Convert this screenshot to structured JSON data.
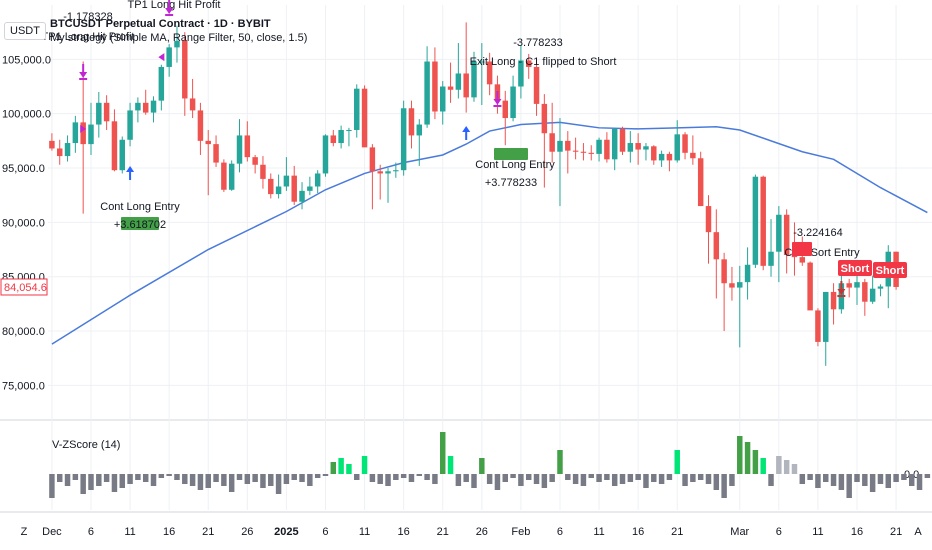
{
  "header": {
    "currency": "USDT",
    "symbol_line": "BTCUSDT Perpetual Contract · 1D · BYBIT",
    "strategy_line": "My strategy (Simple MA, Range Filter, 50, close, 1.5)",
    "last_price": "84,054.6"
  },
  "chart_data": [
    {
      "type": "candlestick",
      "title": "BTCUSDT Perpetual Contract · 1D · BYBIT",
      "ylim": [
        72000,
        110000
      ],
      "y_ticks": [
        "75,000.0",
        "80,000.0",
        "85,000.0",
        "90,000.0",
        "95,000.0",
        "100,000.0",
        "105,000.0"
      ],
      "x_ticks": [
        "Dec",
        "6",
        "11",
        "16",
        "21",
        "26",
        "2025",
        "6",
        "11",
        "16",
        "21",
        "26",
        "Feb",
        "6",
        "11",
        "16",
        "21",
        "Mar",
        "6",
        "11",
        "16",
        "21"
      ],
      "ohlc": [
        [
          97500,
          98200,
          96600,
          96800
        ],
        [
          96800,
          97600,
          95300,
          96100
        ],
        [
          96100,
          98000,
          95600,
          97300
        ],
        [
          97300,
          99800,
          96400,
          99200
        ],
        [
          99200,
          104800,
          90800,
          97200
        ],
        [
          97200,
          101000,
          96200,
          99000
        ],
        [
          99000,
          102000,
          97800,
          101000
        ],
        [
          101000,
          101700,
          98500,
          99300
        ],
        [
          99300,
          100400,
          94700,
          94800
        ],
        [
          94800,
          97900,
          94500,
          97600
        ],
        [
          97600,
          101000,
          97000,
          100300
        ],
        [
          100300,
          101500,
          99200,
          101000
        ],
        [
          101000,
          102200,
          99900,
          100100
        ],
        [
          100100,
          101600,
          99200,
          101200
        ],
        [
          101200,
          104500,
          100300,
          104300
        ],
        [
          104300,
          106400,
          103400,
          106100
        ],
        [
          106100,
          108100,
          104700,
          106700
        ],
        [
          106700,
          107500,
          99800,
          101400
        ],
        [
          101400,
          103200,
          99600,
          100300
        ],
        [
          100300,
          101000,
          96200,
          97500
        ],
        [
          97500,
          98500,
          92500,
          97200
        ],
        [
          97200,
          98000,
          95100,
          95500
        ],
        [
          95500,
          95800,
          92800,
          93000
        ],
        [
          93000,
          95700,
          92900,
          95400
        ],
        [
          95400,
          99500,
          94600,
          98000
        ],
        [
          98000,
          99300,
          95600,
          96000
        ],
        [
          96000,
          96200,
          94500,
          95300
        ],
        [
          95300,
          96100,
          93100,
          94000
        ],
        [
          94000,
          94500,
          92200,
          92600
        ],
        [
          92600,
          94400,
          92200,
          93300
        ],
        [
          93300,
          96000,
          92900,
          94300
        ],
        [
          94300,
          95200,
          91600,
          91900
        ],
        [
          91900,
          93700,
          91200,
          92900
        ],
        [
          92900,
          94200,
          92500,
          93300
        ],
        [
          93300,
          94800,
          92700,
          94500
        ],
        [
          94500,
          98100,
          94200,
          98000
        ],
        [
          98000,
          98500,
          97000,
          97300
        ],
        [
          97300,
          98900,
          96800,
          98500
        ],
        [
          98500,
          98700,
          97000,
          98500
        ],
        [
          98500,
          102700,
          97800,
          102300
        ],
        [
          102300,
          102600,
          97100,
          96900
        ],
        [
          96900,
          97200,
          91200,
          94700
        ],
        [
          94700,
          95300,
          92100,
          94500
        ],
        [
          94500,
          95000,
          91800,
          94700
        ],
        [
          94700,
          95500,
          94100,
          94800
        ],
        [
          94800,
          101200,
          94300,
          100500
        ],
        [
          100500,
          101200,
          96800,
          98000
        ],
        [
          98000,
          99500,
          95200,
          99000
        ],
        [
          99000,
          106200,
          98700,
          104800
        ],
        [
          104800,
          106100,
          99500,
          100200
        ],
        [
          100200,
          103000,
          99000,
          102500
        ],
        [
          102500,
          104700,
          101000,
          102200
        ],
        [
          102200,
          106500,
          101400,
          103700
        ],
        [
          103700,
          108400,
          100100,
          101500
        ],
        [
          101500,
          105700,
          101100,
          104800
        ],
        [
          104800,
          106500,
          100800,
          104800
        ],
        [
          104800,
          105600,
          101700,
          102700
        ],
        [
          102700,
          103500,
          100000,
          101200
        ],
        [
          101200,
          102100,
          97100,
          99600
        ],
        [
          99600,
          103500,
          99300,
          102500
        ],
        [
          102500,
          106300,
          101400,
          104900
        ],
        [
          104900,
          105500,
          103200,
          104300
        ],
        [
          104300,
          105000,
          99800,
          100900
        ],
        [
          100900,
          101800,
          93200,
          98200
        ],
        [
          98200,
          101000,
          95500,
          96500
        ],
        [
          96500,
          99600,
          91500,
          97500
        ],
        [
          97500,
          98400,
          94500,
          96600
        ],
        [
          96600,
          97800,
          95800,
          96500
        ],
        [
          96500,
          97300,
          95700,
          96400
        ],
        [
          96400,
          97100,
          95700,
          96300
        ],
        [
          96300,
          97800,
          95600,
          97600
        ],
        [
          97600,
          98300,
          95500,
          95800
        ],
        [
          95800,
          98700,
          94800,
          98600
        ],
        [
          98600,
          98800,
          96200,
          96500
        ],
        [
          96500,
          98400,
          95500,
          97300
        ],
        [
          97300,
          98200,
          95300,
          96700
        ],
        [
          96700,
          97300,
          95700,
          97000
        ],
        [
          97000,
          97100,
          95300,
          95700
        ],
        [
          95700,
          96600,
          95100,
          96300
        ],
        [
          96300,
          96500,
          94700,
          95700
        ],
        [
          95700,
          99400,
          95500,
          98100
        ],
        [
          98100,
          98300,
          95800,
          96400
        ],
        [
          96400,
          98000,
          95300,
          95900
        ],
        [
          95900,
          96500,
          91500,
          91500
        ],
        [
          91500,
          92500,
          86200,
          89100
        ],
        [
          89100,
          91200,
          83000,
          86600
        ],
        [
          86600,
          87200,
          80000,
          84400
        ],
        [
          84400,
          85900,
          82800,
          84000
        ],
        [
          84000,
          86000,
          78500,
          84500
        ],
        [
          84500,
          87700,
          82900,
          86100
        ],
        [
          86100,
          94400,
          85800,
          94200
        ],
        [
          94200,
          94300,
          85600,
          86000
        ],
        [
          86000,
          90300,
          85000,
          87300
        ],
        [
          87300,
          91500,
          84500,
          90700
        ],
        [
          90700,
          91200,
          85300,
          87000
        ],
        [
          87000,
          90000,
          85100,
          86800
        ],
        [
          86800,
          88700,
          86000,
          86300
        ],
        [
          86300,
          86400,
          82000,
          81900
        ],
        [
          81900,
          82100,
          78600,
          79000
        ],
        [
          79000,
          83600,
          76800,
          83600
        ],
        [
          83600,
          84400,
          80600,
          82000
        ],
        [
          82000,
          85400,
          81600,
          84400
        ],
        [
          84400,
          84800,
          83100,
          84000
        ],
        [
          84000,
          85100,
          82400,
          84500
        ],
        [
          84500,
          84800,
          81400,
          82700
        ],
        [
          82700,
          85100,
          82500,
          83900
        ],
        [
          83900,
          84300,
          83200,
          84100
        ],
        [
          84100,
          87900,
          82100,
          87300
        ],
        [
          87300,
          87300,
          83800,
          84054.6
        ]
      ],
      "ma_series": {
        "name": "Simple MA",
        "color": "#4a7bdb",
        "values": [
          [
            0,
            78800
          ],
          [
            10,
            83300
          ],
          [
            20,
            87500
          ],
          [
            30,
            91000
          ],
          [
            35,
            93000
          ],
          [
            40,
            94500
          ],
          [
            45,
            95500
          ],
          [
            50,
            96200
          ],
          [
            53,
            97200
          ],
          [
            56,
            98400
          ],
          [
            60,
            99000
          ],
          [
            65,
            99200
          ],
          [
            70,
            98700
          ],
          [
            75,
            98600
          ],
          [
            80,
            98700
          ],
          [
            85,
            98800
          ],
          [
            88,
            98500
          ],
          [
            92,
            97500
          ],
          [
            96,
            96500
          ],
          [
            100,
            95800
          ],
          [
            106,
            93200
          ],
          [
            112,
            90900
          ]
        ]
      },
      "annotations": [
        {
          "text": "-1.178328",
          "color": "#131722"
        },
        {
          "text": "TP1 Long Hit Profit",
          "color": "#131722"
        },
        {
          "text": "TP1 Long Hit Profit",
          "color": "#131722"
        },
        {
          "text": "Cont Long Entry",
          "color": "#131722"
        },
        {
          "text": "+3.618702",
          "color": "#131722"
        },
        {
          "text": "-3.778233",
          "color": "#131722"
        },
        {
          "text": "Exit Long - C1 flipped to Short",
          "color": "#131722"
        },
        {
          "text": "Cont Long Entry",
          "color": "#131722"
        },
        {
          "text": "+3.778233",
          "color": "#131722"
        },
        {
          "text": "-3.224164",
          "color": "#131722"
        },
        {
          "text": "Cont Sort Entry",
          "color": "#131722"
        },
        {
          "text": "Short",
          "color": "#ffffff"
        },
        {
          "text": "Short",
          "color": "#ffffff"
        }
      ]
    },
    {
      "type": "bar",
      "title": "V-ZScore (14)",
      "zero_label": "0.0",
      "colors": {
        "neg": "#787b86",
        "low": "#b2b5be",
        "mid": "#00e676",
        "high": "#43a047"
      },
      "values": [
        -1.2,
        -0.4,
        -0.6,
        -0.3,
        -1.0,
        -0.8,
        -0.6,
        -0.4,
        -0.9,
        -0.7,
        -0.5,
        -0.3,
        -0.4,
        -0.6,
        -0.2,
        -0.1,
        -0.3,
        -0.5,
        -0.6,
        -0.8,
        -0.7,
        -0.4,
        -0.6,
        -0.9,
        -0.3,
        -0.5,
        -0.4,
        -0.7,
        -0.6,
        -1.0,
        -0.5,
        -0.3,
        -0.4,
        -0.6,
        -0.2,
        -0.1,
        0.6,
        0.8,
        0.5,
        -0.3,
        0.9,
        -0.4,
        -0.5,
        -0.6,
        -0.3,
        -0.2,
        -0.4,
        -0.1,
        -0.3,
        -0.5,
        2.1,
        0.9,
        -0.6,
        -0.4,
        -0.7,
        0.8,
        -0.5,
        -0.8,
        -0.4,
        -0.2,
        -0.6,
        -0.3,
        -0.5,
        -0.7,
        -0.4,
        1.2,
        -0.3,
        -0.5,
        -0.6,
        -0.2,
        -0.4,
        -0.3,
        -0.6,
        -0.5,
        -0.4,
        -0.3,
        -0.7,
        -0.4,
        -0.5,
        -0.3,
        1.2,
        -0.6,
        -0.4,
        -0.3,
        -0.5,
        -0.8,
        -1.2,
        -0.6,
        1.9,
        1.6,
        1.2,
        0.8,
        -0.6,
        0.9,
        0.7,
        0.5,
        -0.5,
        -0.3,
        -0.7,
        -0.4,
        -0.6,
        -0.8,
        -1.2,
        -0.4,
        -0.6,
        -0.9,
        -0.5,
        -0.7,
        -0.4,
        -0.3,
        -0.6,
        -0.8,
        -0.2
      ],
      "bar_classes": [
        "n",
        "n",
        "n",
        "n",
        "n",
        "n",
        "n",
        "n",
        "n",
        "n",
        "n",
        "n",
        "n",
        "n",
        "n",
        "n",
        "n",
        "n",
        "n",
        "n",
        "n",
        "n",
        "n",
        "n",
        "n",
        "n",
        "n",
        "n",
        "n",
        "n",
        "n",
        "n",
        "n",
        "n",
        "n",
        "n",
        "h",
        "m",
        "m",
        "n",
        "m",
        "n",
        "n",
        "n",
        "n",
        "n",
        "n",
        "n",
        "n",
        "n",
        "h",
        "m",
        "n",
        "n",
        "n",
        "h",
        "n",
        "n",
        "n",
        "n",
        "n",
        "n",
        "n",
        "n",
        "n",
        "h",
        "n",
        "n",
        "n",
        "n",
        "n",
        "n",
        "n",
        "n",
        "n",
        "n",
        "n",
        "n",
        "n",
        "n",
        "m",
        "n",
        "n",
        "n",
        "n",
        "n",
        "n",
        "n",
        "h",
        "h",
        "h",
        "m",
        "n",
        "l",
        "l",
        "l",
        "n",
        "n",
        "n",
        "n",
        "n",
        "n",
        "n",
        "n",
        "n",
        "n",
        "n",
        "n",
        "n",
        "n",
        "n",
        "n",
        "n"
      ]
    }
  ],
  "colors": {
    "up": "#26a69a",
    "down": "#ef5350",
    "ma": "#4a7bdb",
    "grid": "#eef0f4",
    "axis_text": "#131722",
    "tp_arrow": "#c026d3",
    "long_arrow": "#2962ff",
    "entry_label_bg": "#43a047",
    "short_label_bg": "#f23645",
    "last_price_border": "#f23645"
  },
  "icons": [
    "tp-arrow-icon",
    "long-entry-arrow-icon",
    "short-entry-arrow-icon"
  ],
  "axis": {
    "corner_left": "Z",
    "corner_right": "A"
  }
}
